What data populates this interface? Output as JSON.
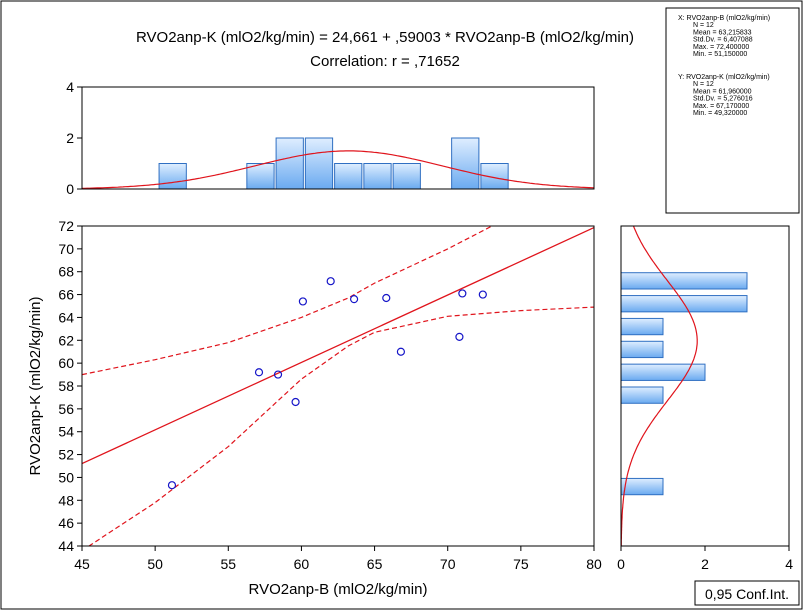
{
  "colors": {
    "fit": "#e0141c",
    "points": "#1515c8",
    "bar_fill_top": "#dfeeff",
    "bar_fill_bottom": "#6aaaf0",
    "bar_stroke": "#2f6fc2",
    "frame": "#000000"
  },
  "chart_data": {
    "type": "scatter",
    "title": "RVO2anp-K (mlO2/kg/min) = 24,661 + ,59003 * RVO2anp-B (mlO2/kg/min)",
    "subtitle": "Correlation: r = ,71652",
    "xlabel": "RVO2anp-B (mlO2/kg/min)",
    "ylabel": "RVO2anp-K (mlO2/kg/min)",
    "xlim": [
      45,
      80
    ],
    "ylim": [
      44,
      72
    ],
    "x_ticks": [
      "45",
      "50",
      "55",
      "60",
      "65",
      "70",
      "75",
      "80"
    ],
    "y_ticks": [
      "44",
      "46",
      "48",
      "50",
      "52",
      "54",
      "56",
      "58",
      "60",
      "62",
      "64",
      "66",
      "68",
      "70",
      "72"
    ],
    "points": [
      {
        "x": 51.15,
        "y": 49.32
      },
      {
        "x": 57.1,
        "y": 59.2
      },
      {
        "x": 58.4,
        "y": 59.0
      },
      {
        "x": 59.6,
        "y": 56.6
      },
      {
        "x": 60.1,
        "y": 65.4
      },
      {
        "x": 62.0,
        "y": 67.17
      },
      {
        "x": 63.6,
        "y": 65.6
      },
      {
        "x": 65.8,
        "y": 65.7
      },
      {
        "x": 66.8,
        "y": 61.0
      },
      {
        "x": 70.8,
        "y": 62.3
      },
      {
        "x": 71.0,
        "y": 66.1
      },
      {
        "x": 72.4,
        "y": 66.0
      }
    ],
    "regression": {
      "intercept": 24.661,
      "slope": 0.59003
    },
    "confidence_band": {
      "x": [
        45,
        50,
        55,
        60,
        63.2,
        65,
        70,
        75,
        80
      ],
      "upper": [
        59.0,
        60.3,
        61.8,
        64.0,
        65.7,
        67.0,
        70.0,
        73.3,
        76.6
      ],
      "lower": [
        43.6,
        47.8,
        52.7,
        58.6,
        61.5,
        62.7,
        64.1,
        64.6,
        64.9
      ]
    },
    "legend_label": "0,95 Conf.Int.",
    "x_histogram": {
      "ylim": [
        0,
        4
      ],
      "y_ticks": [
        "0",
        "2",
        "4"
      ],
      "bins": [
        {
          "x0": 50.2,
          "x1": 52.2,
          "count": 1
        },
        {
          "x0": 56.2,
          "x1": 58.2,
          "count": 1
        },
        {
          "x0": 58.2,
          "x1": 60.2,
          "count": 2
        },
        {
          "x0": 60.2,
          "x1": 62.2,
          "count": 2
        },
        {
          "x0": 62.2,
          "x1": 64.2,
          "count": 1
        },
        {
          "x0": 64.2,
          "x1": 66.2,
          "count": 1
        },
        {
          "x0": 66.2,
          "x1": 68.2,
          "count": 1
        },
        {
          "x0": 70.2,
          "x1": 72.2,
          "count": 2
        },
        {
          "x0": 72.2,
          "x1": 74.2,
          "count": 1
        }
      ],
      "normal_curve": {
        "mean": 63.215833,
        "sd": 6.407088,
        "n": 12,
        "binwidth": 2
      }
    },
    "y_histogram": {
      "xlim": [
        0,
        4
      ],
      "x_ticks": [
        "0",
        "2",
        "4"
      ],
      "bins": [
        {
          "y0": 48.4,
          "y1": 50.0,
          "count": 1
        },
        {
          "y0": 56.4,
          "y1": 58.0,
          "count": 1
        },
        {
          "y0": 58.4,
          "y1": 60.0,
          "count": 2
        },
        {
          "y0": 60.4,
          "y1": 62.0,
          "count": 1
        },
        {
          "y0": 62.4,
          "y1": 64.0,
          "count": 1
        },
        {
          "y0": 64.4,
          "y1": 66.0,
          "count": 3
        },
        {
          "y0": 66.4,
          "y1": 68.0,
          "count": 3
        }
      ],
      "normal_curve": {
        "mean": 61.96,
        "sd": 5.276016,
        "n": 12,
        "binwidth": 2
      }
    },
    "stats_box": {
      "x_lines": [
        "X:  RVO2anp-B (mlO2/kg/min)",
        "N = 12",
        "Mean = 63,215833",
        "Std.Dv. = 6,407088",
        "Max. = 72,400000",
        "Min. = 51,150000"
      ],
      "y_lines": [
        "Y:  RVO2anp-K (mlO2/kg/min)",
        "N = 12",
        "Mean = 61,960000",
        "Std.Dv. = 5,276016",
        "Max. = 67,170000",
        "Min. = 49,320000"
      ]
    }
  }
}
